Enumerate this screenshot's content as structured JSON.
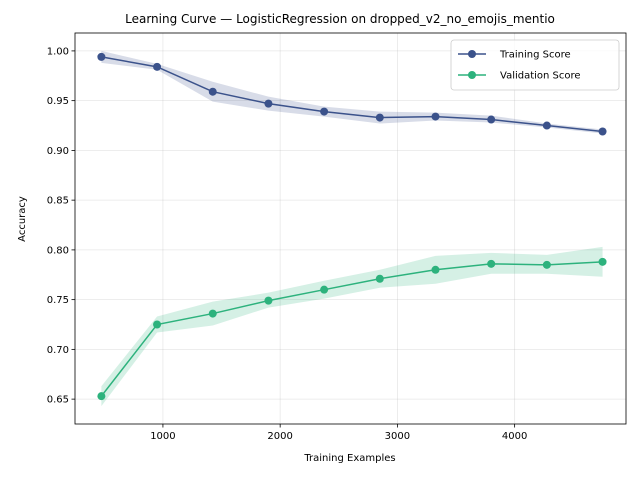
{
  "chart_data": {
    "type": "line",
    "title": "Learning Curve — LogisticRegression on dropped_v2_no_emojis_mentio",
    "xlabel": "Training Examples",
    "ylabel": "Accuracy",
    "xlim": [
      250,
      4950
    ],
    "ylim": [
      0.625,
      1.018
    ],
    "xticks": [
      1000,
      2000,
      3000,
      4000
    ],
    "yticks": [
      0.65,
      0.7,
      0.75,
      0.8,
      0.85,
      0.9,
      0.95,
      1.0
    ],
    "grid": true,
    "legend_position": "top-right",
    "x": [
      475,
      950,
      1425,
      1900,
      2375,
      2850,
      3325,
      3800,
      4275,
      4750
    ],
    "series": [
      {
        "name": "Training Score",
        "color": "#3b528b",
        "values": [
          0.994,
          0.984,
          0.959,
          0.947,
          0.939,
          0.933,
          0.934,
          0.931,
          0.925,
          0.919
        ],
        "band_low": [
          0.988,
          0.981,
          0.949,
          0.94,
          0.934,
          0.927,
          0.93,
          0.928,
          0.923,
          0.917
        ],
        "band_high": [
          1.0,
          0.987,
          0.969,
          0.954,
          0.944,
          0.939,
          0.938,
          0.935,
          0.927,
          0.921
        ]
      },
      {
        "name": "Validation Score",
        "color": "#2db27d",
        "values": [
          0.653,
          0.725,
          0.736,
          0.749,
          0.76,
          0.771,
          0.78,
          0.786,
          0.785,
          0.788
        ],
        "band_low": [
          0.643,
          0.717,
          0.724,
          0.742,
          0.751,
          0.762,
          0.766,
          0.776,
          0.776,
          0.773
        ],
        "band_high": [
          0.663,
          0.733,
          0.748,
          0.757,
          0.769,
          0.78,
          0.794,
          0.797,
          0.795,
          0.803
        ]
      }
    ]
  }
}
